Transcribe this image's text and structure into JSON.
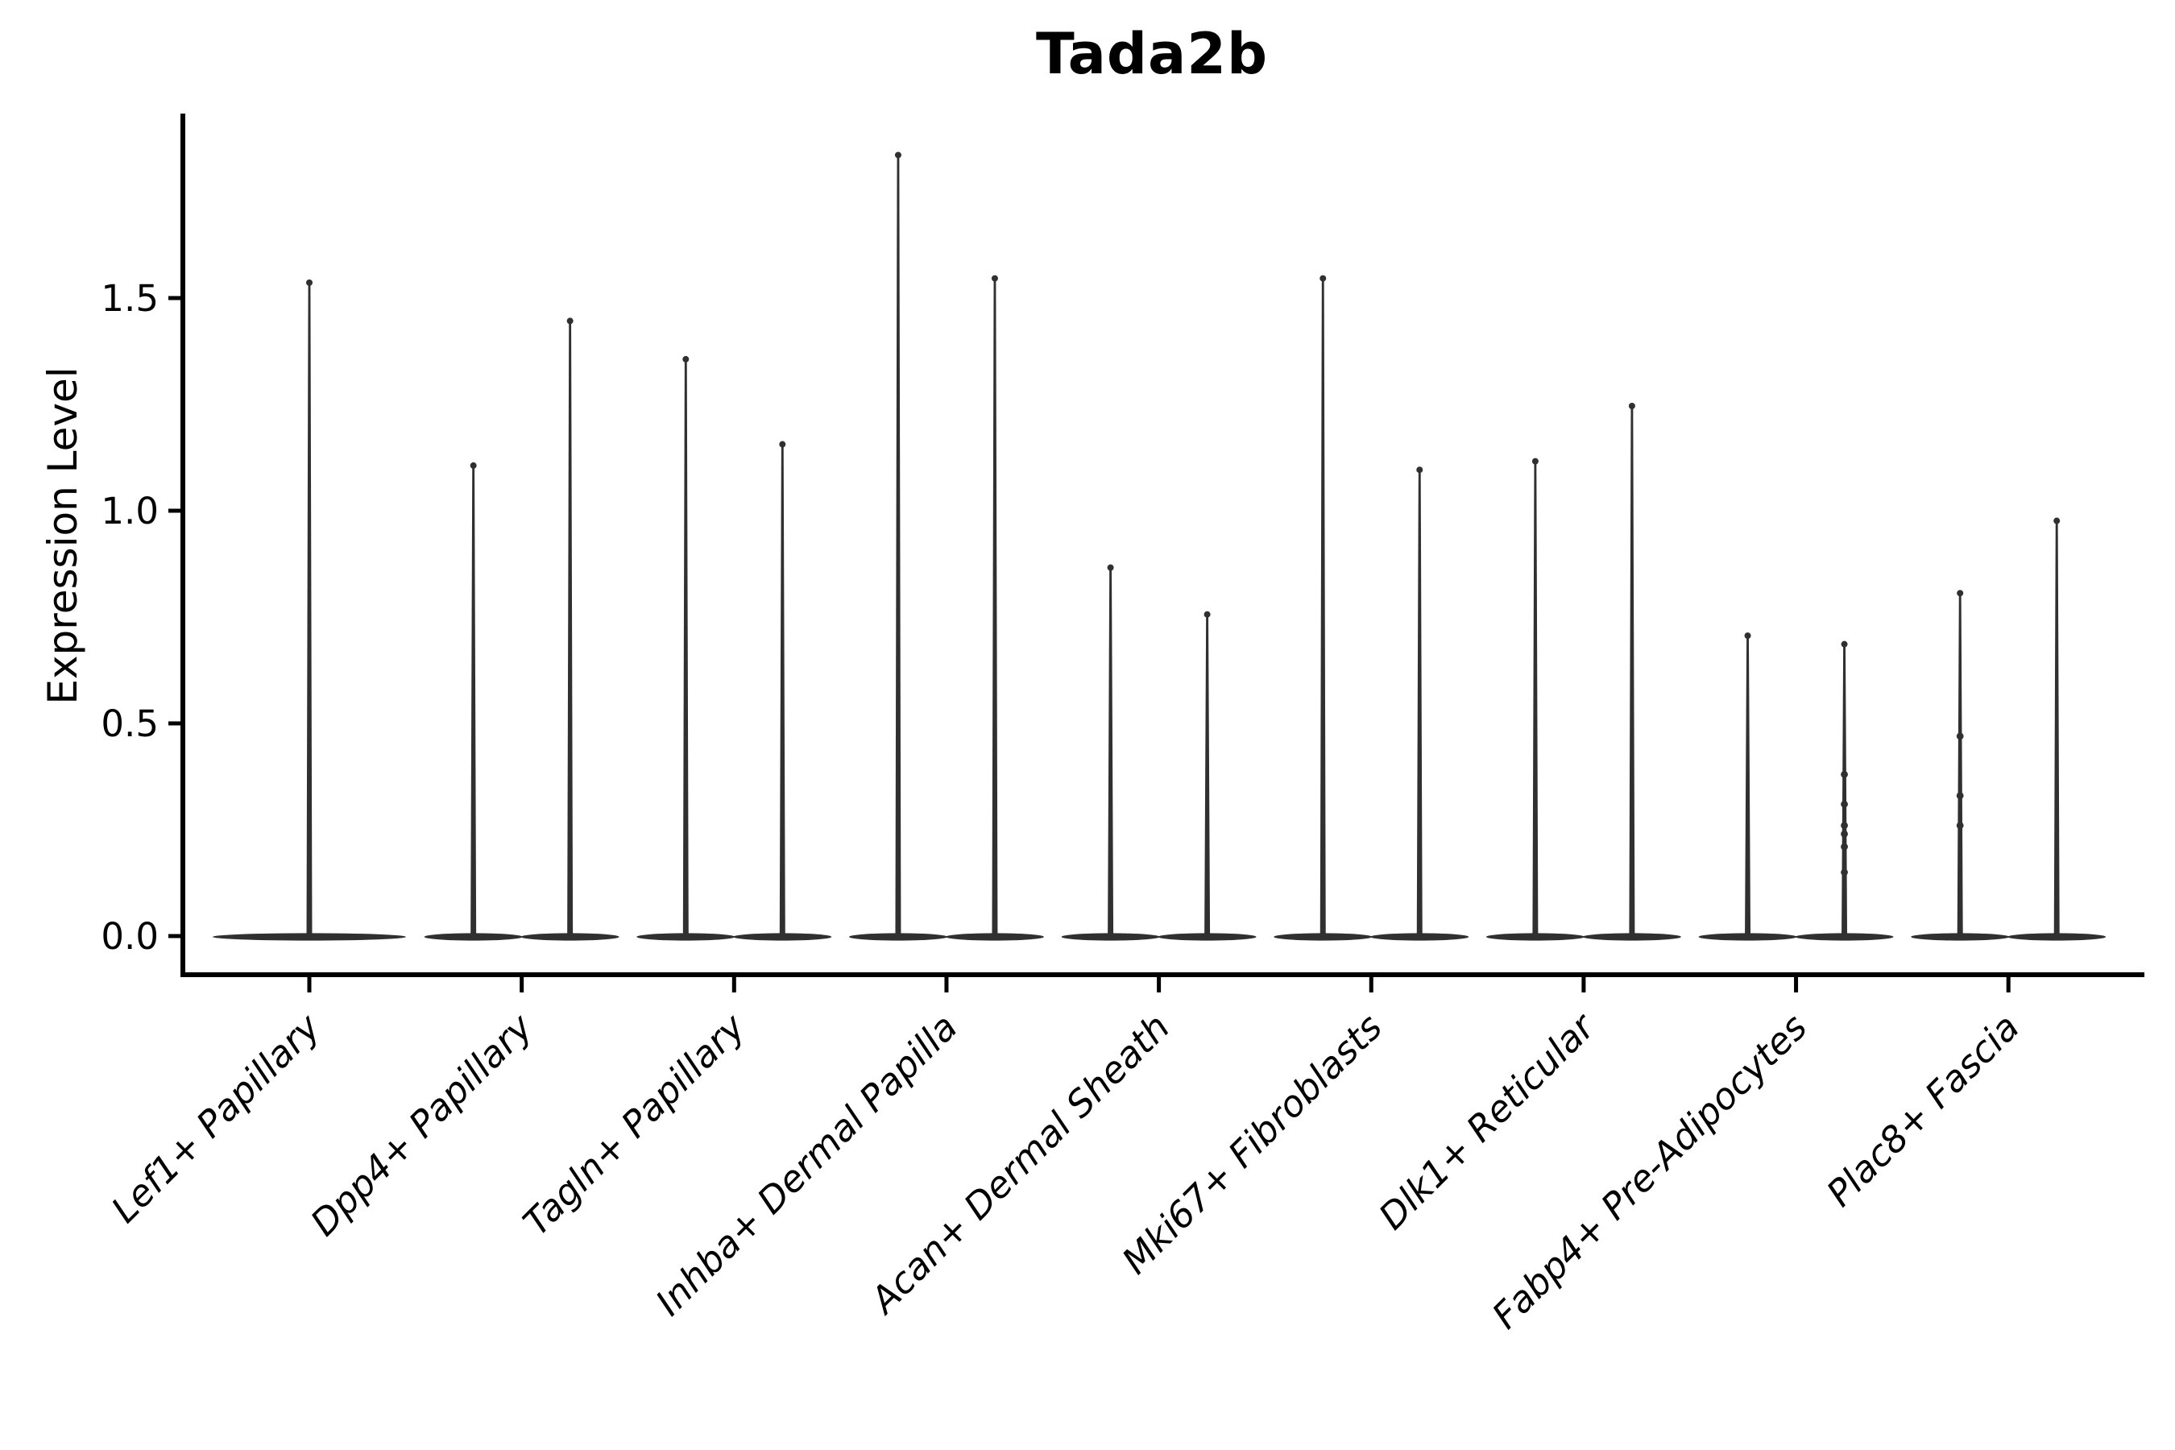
{
  "title": "Tada2b",
  "y_axis": {
    "label": "Expression Level",
    "tick_labels": [
      "0.0",
      "0.5",
      "1.0",
      "1.5"
    ],
    "tick_values": [
      0.0,
      0.5,
      1.0,
      1.5
    ]
  },
  "colors": {
    "violin": "#303030",
    "axis": "#000000",
    "text": "#000000",
    "background": "#ffffff"
  },
  "chart_data": {
    "type": "violin",
    "title": "Tada2b",
    "xlabel": "",
    "ylabel": "Expression Level",
    "ylim": [
      -0.09,
      1.93
    ],
    "yticks": [
      0.0,
      0.5,
      1.0,
      1.5
    ],
    "grid": "off",
    "legend": "none",
    "style": "thin spike violins with flat dense mass at zero; two violins per category (split groups), first category has a single full-width violin; rotated italic category labels",
    "categories": [
      "Lef1+ Papillary",
      "Dpp4+ Papillary",
      "Tagln+ Papillary",
      "Inhba+ Dermal Papilla",
      "Acan+ Dermal Sheath",
      "Mki67+ Fibroblasts",
      "Dlk1+ Reticular",
      "Fabp4+ Pre-Adipocytes",
      "Plac8+ Fascia"
    ],
    "series": [
      {
        "category": "Lef1+ Papillary",
        "violins": [
          {
            "group": 1,
            "max": 1.54,
            "baseline": 0.0,
            "width": "full",
            "points": []
          }
        ]
      },
      {
        "category": "Dpp4+ Papillary",
        "violins": [
          {
            "group": 1,
            "max": 1.11,
            "baseline": 0.0,
            "width": "half",
            "points": []
          },
          {
            "group": 2,
            "max": 1.45,
            "baseline": 0.0,
            "width": "half",
            "points": []
          }
        ]
      },
      {
        "category": "Tagln+ Papillary",
        "violins": [
          {
            "group": 1,
            "max": 1.36,
            "baseline": 0.0,
            "width": "half",
            "points": []
          },
          {
            "group": 2,
            "max": 1.16,
            "baseline": 0.0,
            "width": "half",
            "points": []
          }
        ]
      },
      {
        "category": "Inhba+ Dermal Papilla",
        "violins": [
          {
            "group": 1,
            "max": 1.84,
            "baseline": 0.0,
            "width": "half",
            "points": []
          },
          {
            "group": 2,
            "max": 1.55,
            "baseline": 0.0,
            "width": "half",
            "points": []
          }
        ]
      },
      {
        "category": "Acan+ Dermal Sheath",
        "violins": [
          {
            "group": 1,
            "max": 0.87,
            "baseline": 0.0,
            "width": "half",
            "points": []
          },
          {
            "group": 2,
            "max": 0.76,
            "baseline": 0.0,
            "width": "half",
            "points": []
          }
        ]
      },
      {
        "category": "Mki67+ Fibroblasts",
        "violins": [
          {
            "group": 1,
            "max": 1.55,
            "baseline": 0.0,
            "width": "half",
            "points": []
          },
          {
            "group": 2,
            "max": 1.1,
            "baseline": 0.0,
            "width": "half",
            "points": []
          }
        ]
      },
      {
        "category": "Dlk1+ Reticular",
        "violins": [
          {
            "group": 1,
            "max": 1.12,
            "baseline": 0.0,
            "width": "half",
            "points": []
          },
          {
            "group": 2,
            "max": 1.25,
            "baseline": 0.0,
            "width": "half",
            "points": []
          }
        ]
      },
      {
        "category": "Fabp4+ Pre-Adipocytes",
        "violins": [
          {
            "group": 1,
            "max": 0.71,
            "baseline": 0.0,
            "width": "half",
            "points": []
          },
          {
            "group": 2,
            "max": 0.69,
            "baseline": 0.0,
            "width": "half",
            "points": [
              0.38,
              0.31,
              0.26,
              0.24,
              0.21,
              0.15
            ]
          }
        ]
      },
      {
        "category": "Plac8+ Fascia",
        "violins": [
          {
            "group": 1,
            "max": 0.81,
            "baseline": 0.0,
            "width": "half",
            "points": [
              0.47,
              0.33,
              0.26
            ]
          },
          {
            "group": 2,
            "max": 0.98,
            "baseline": 0.0,
            "width": "half",
            "points": []
          }
        ]
      }
    ]
  }
}
